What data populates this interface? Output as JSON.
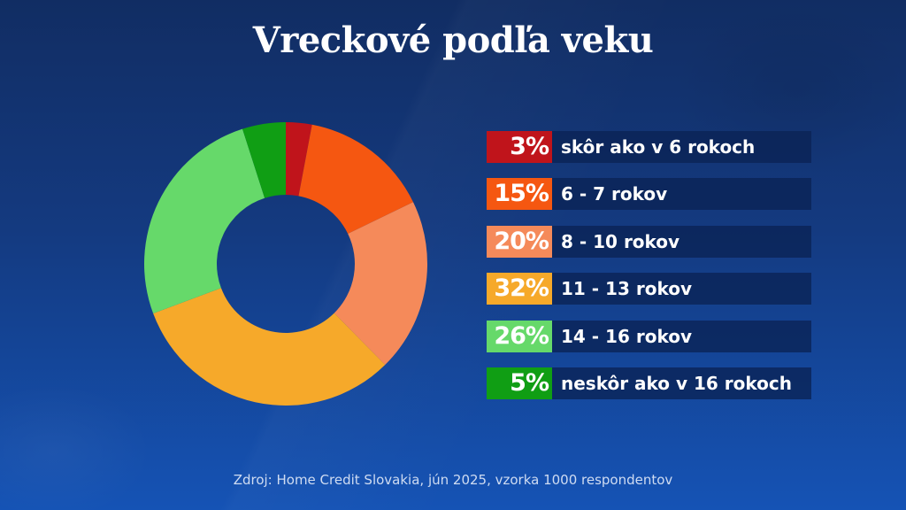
{
  "title": "Vreckové podľa veku",
  "source": "Zdroj: Home Credit Slovakia, jún 2025, vzorka 1000 respondentov",
  "legend": [
    {
      "pct": "3%",
      "label": "skôr ako v 6 rokoch",
      "color": "#c0141b"
    },
    {
      "pct": "15%",
      "label": "6 - 7 rokov",
      "color": "#f55711"
    },
    {
      "pct": "20%",
      "label": "8 - 10 rokov",
      "color": "#f58a5a"
    },
    {
      "pct": "32%",
      "label": "11 - 13 rokov",
      "color": "#f6a92a"
    },
    {
      "pct": "26%",
      "label": "14 - 16 rokov",
      "color": "#66d96a"
    },
    {
      "pct": "5%",
      "label": "neskôr ako v 16 rokoch",
      "color": "#109e14"
    }
  ],
  "chart_data": {
    "type": "pie",
    "subtype": "donut",
    "title": "Vreckové podľa veku",
    "categories": [
      "skôr ako v 6 rokoch",
      "6 - 7 rokov",
      "8 - 10 rokov",
      "11 - 13 rokov",
      "14 - 16 rokov",
      "neskôr ako v 16 rokoch"
    ],
    "values": [
      3,
      15,
      20,
      32,
      26,
      5
    ],
    "unit": "%",
    "colors": [
      "#c0141b",
      "#f55711",
      "#f58a5a",
      "#f6a92a",
      "#66d96a",
      "#109e14"
    ],
    "start_angle": "12 o'clock, clockwise",
    "legend_position": "right",
    "source": "Zdroj: Home Credit Slovakia, jún 2025, vzorka 1000 respondentov"
  }
}
